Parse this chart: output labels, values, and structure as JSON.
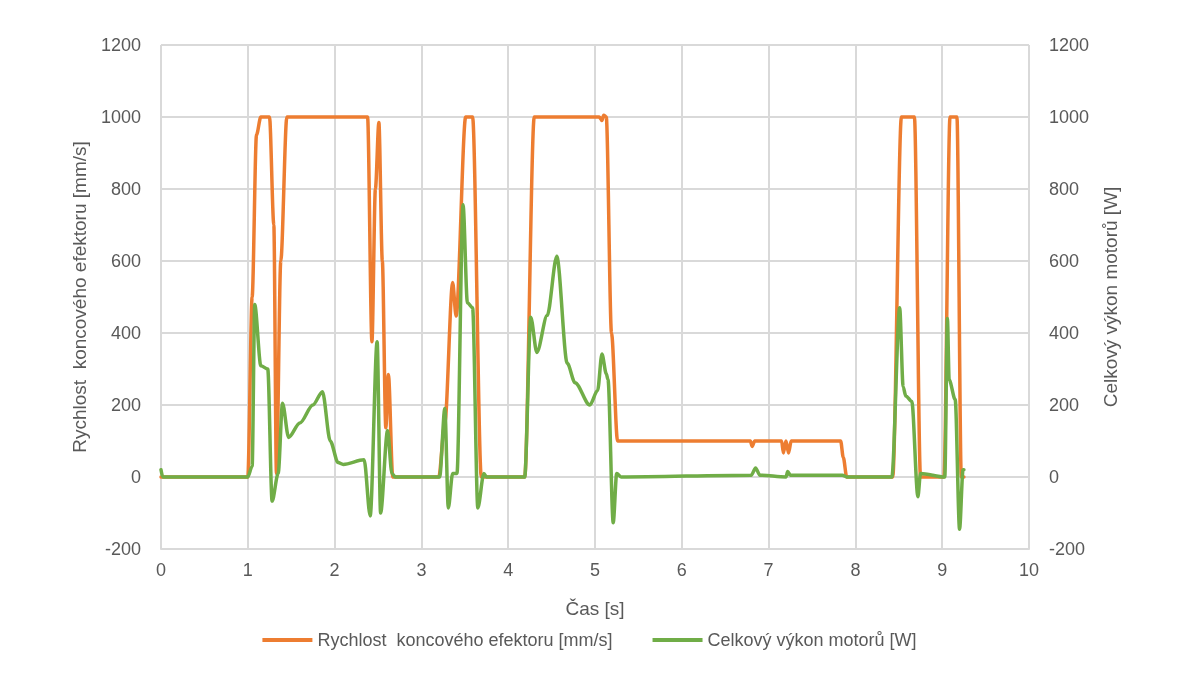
{
  "chart_data": {
    "type": "line",
    "xlabel": "Čas [s]",
    "ylabel": "Rychlost  koncového efektoru [mm/s]",
    "y2label": "Celkový výkon motorů [W]",
    "xlim": [
      0,
      10
    ],
    "xticks": [
      0,
      1,
      2,
      3,
      4,
      5,
      6,
      7,
      8,
      9,
      10
    ],
    "ylim": [
      -200,
      1200
    ],
    "yticks": [
      -200,
      0,
      200,
      400,
      600,
      800,
      1000,
      1200
    ],
    "y2lim": [
      -200,
      1200
    ],
    "y2ticks": [
      -200,
      0,
      200,
      400,
      600,
      800,
      1000,
      1200
    ],
    "grid": true,
    "legend": "bottom",
    "marker": "none",
    "line_style": "solid",
    "series": [
      {
        "name": "Rychlost  koncového efektoru [mm/s]",
        "color": "#ed7d31",
        "x": [
          0,
          1.0,
          1.05,
          1.1,
          1.15,
          1.25,
          1.3,
          1.33,
          1.38,
          1.45,
          2.38,
          2.43,
          2.47,
          2.51,
          2.55,
          2.59,
          2.62,
          2.67,
          3.2,
          3.27,
          3.36,
          3.4,
          3.51,
          3.59,
          3.69,
          4.19,
          4.3,
          5.05,
          5.08,
          5.1,
          5.13,
          5.19,
          5.26,
          6.79,
          6.81,
          6.84,
          7.15,
          7.17,
          7.2,
          7.23,
          7.26,
          7.83,
          7.86,
          7.9,
          8.43,
          8.53,
          8.68,
          8.75,
          9.02,
          9.09,
          9.17,
          9.22,
          9.25
        ],
        "values": [
          0,
          0,
          500,
          950,
          1000,
          1000,
          700,
          10,
          600,
          1000,
          1000,
          376,
          800,
          985,
          600,
          137,
          285,
          0,
          0,
          150,
          540,
          447,
          1000,
          1000,
          0,
          0,
          1000,
          1000,
          990,
          1005,
          1000,
          400,
          100,
          100,
          85,
          100,
          100,
          67,
          100,
          67,
          100,
          100,
          55,
          0,
          0,
          1000,
          1000,
          0,
          0,
          1000,
          1000,
          0,
          0
        ]
      },
      {
        "name": "Celkový výkon motorů [W]",
        "color": "#70ad47",
        "axis": "y2",
        "x": [
          0,
          0.02,
          1.0,
          1.05,
          1.08,
          1.15,
          1.23,
          1.28,
          1.35,
          1.4,
          1.47,
          1.6,
          1.75,
          1.86,
          1.95,
          2.04,
          2.1,
          2.34,
          2.41,
          2.49,
          2.53,
          2.61,
          2.66,
          2.7,
          3.21,
          3.27,
          3.31,
          3.36,
          3.41,
          3.48,
          3.53,
          3.59,
          3.65,
          3.72,
          3.75,
          4.19,
          4.26,
          4.33,
          4.45,
          4.56,
          4.68,
          4.77,
          4.94,
          5.03,
          5.08,
          5.13,
          5.15,
          5.21,
          5.25,
          5.3,
          6.8,
          6.85,
          6.9,
          7.2,
          7.22,
          7.25,
          7.85,
          7.9,
          8.42,
          8.51,
          8.55,
          8.58,
          8.65,
          8.72,
          8.75,
          9.03,
          9.06,
          9.08,
          9.15,
          9.2,
          9.24,
          9.25
        ],
        "values": [
          20,
          0,
          0,
          30,
          479,
          309,
          300,
          -67,
          10,
          205,
          110,
          150,
          200,
          237,
          100,
          40,
          35,
          48,
          -108,
          376,
          -100,
          129,
          10,
          0,
          0,
          190,
          -86,
          10,
          10,
          756,
          484,
          470,
          -86,
          10,
          0,
          0,
          444,
          346,
          449,
          613,
          316,
          262,
          200,
          240,
          342,
          287,
          270,
          -127,
          10,
          0,
          5,
          25,
          5,
          0,
          15,
          5,
          5,
          0,
          0,
          470,
          251,
          225,
          210,
          -55,
          10,
          0,
          440,
          270,
          215,
          -145,
          20,
          20
        ]
      }
    ]
  }
}
